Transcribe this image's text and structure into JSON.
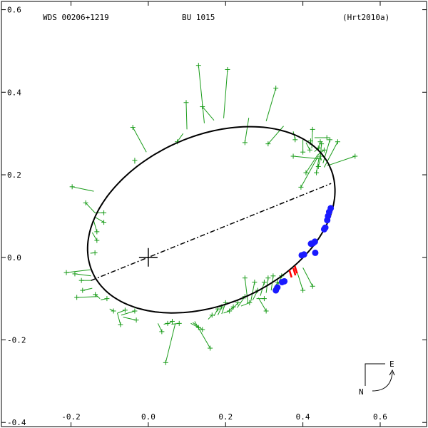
{
  "header": {
    "left": "WDS 00206+1219",
    "center": "BU 1015",
    "right": "(Hrt2010a)"
  },
  "compass": {
    "east": "E",
    "north": "N"
  },
  "colors": {
    "orbit": "#000000",
    "residual": "#1a9c1a",
    "speckle": "#1a1aff",
    "recent": "#ff0000"
  },
  "chart_data": {
    "type": "scatter",
    "title": "",
    "xlabel": "",
    "ylabel": "",
    "xlim": [
      -0.38,
      0.72
    ],
    "ylim": [
      -0.41,
      0.62
    ],
    "x_ticks": [
      "-0.2",
      "0.0",
      "0.2",
      "0.4",
      "0.6"
    ],
    "x_tick_values": [
      -0.2,
      0.0,
      0.2,
      0.4,
      0.6
    ],
    "y_ticks": [
      "0.6",
      "0.4",
      "0.2",
      "0.0",
      "-0.2",
      "-0.4"
    ],
    "y_tick_values": [
      0.6,
      0.4,
      0.2,
      0.0,
      -0.2,
      -0.4
    ],
    "primary": [
      0.0,
      0.0
    ],
    "line_of_nodes": [
      [
        -0.148,
        -0.056
      ],
      [
        0.473,
        0.179
      ]
    ],
    "orbit": {
      "center": [
        0.163,
        0.091
      ],
      "semi_major": 0.333,
      "semi_minor": 0.206,
      "angle_deg": 20.6
    },
    "series": [
      {
        "name": "micrometer",
        "marker": "plus",
        "points": [
          [
            -0.197,
            0.171,
            -0.141,
            0.16
          ],
          [
            -0.162,
            0.132,
            -0.138,
            0.108
          ],
          [
            -0.115,
            0.108,
            -0.138,
            0.108
          ],
          [
            -0.115,
            0.085,
            -0.139,
            0.098
          ],
          [
            -0.133,
            0.062,
            -0.141,
            0.088
          ],
          [
            -0.133,
            0.041,
            -0.145,
            0.06
          ],
          [
            -0.138,
            0.011,
            -0.15,
            0.01
          ],
          [
            -0.212,
            -0.037,
            -0.15,
            -0.03
          ],
          [
            -0.19,
            -0.04,
            -0.148,
            -0.045
          ],
          [
            -0.173,
            -0.056,
            -0.147,
            -0.056
          ],
          [
            -0.17,
            -0.08,
            -0.145,
            -0.075
          ],
          [
            -0.185,
            -0.097,
            -0.13,
            -0.095
          ],
          [
            -0.137,
            -0.09,
            -0.125,
            -0.1
          ],
          [
            -0.107,
            -0.1,
            -0.123,
            -0.103
          ],
          [
            -0.09,
            -0.13,
            -0.1,
            -0.125
          ],
          [
            -0.072,
            -0.163,
            -0.08,
            -0.135
          ],
          [
            -0.06,
            -0.128,
            -0.08,
            -0.135
          ],
          [
            -0.035,
            -0.13,
            -0.07,
            -0.14
          ],
          [
            -0.031,
            -0.152,
            -0.065,
            -0.145
          ],
          [
            0.035,
            -0.18,
            0.025,
            -0.16
          ],
          [
            0.05,
            -0.16,
            0.04,
            -0.162
          ],
          [
            0.062,
            -0.155,
            0.05,
            -0.162
          ],
          [
            0.08,
            -0.16,
            0.06,
            -0.162
          ],
          [
            0.045,
            -0.255,
            0.07,
            -0.16
          ],
          [
            0.13,
            -0.17,
            0.11,
            -0.16
          ],
          [
            0.14,
            -0.175,
            0.115,
            -0.158
          ],
          [
            0.16,
            -0.22,
            0.12,
            -0.155
          ],
          [
            0.165,
            -0.14,
            0.155,
            -0.15
          ],
          [
            0.18,
            -0.125,
            0.17,
            -0.142
          ],
          [
            0.19,
            -0.12,
            0.18,
            -0.14
          ],
          [
            0.2,
            -0.11,
            0.19,
            -0.137
          ],
          [
            0.21,
            -0.13,
            0.195,
            -0.135
          ],
          [
            0.22,
            -0.12,
            0.205,
            -0.132
          ],
          [
            0.232,
            -0.11,
            0.215,
            -0.128
          ],
          [
            0.25,
            -0.095,
            0.23,
            -0.122
          ],
          [
            0.262,
            -0.11,
            0.24,
            -0.118
          ],
          [
            0.25,
            -0.05,
            0.258,
            -0.112
          ],
          [
            0.275,
            -0.06,
            0.265,
            -0.108
          ],
          [
            0.283,
            -0.08,
            0.27,
            -0.104
          ],
          [
            0.3,
            -0.1,
            0.28,
            -0.1
          ],
          [
            0.305,
            -0.13,
            0.285,
            -0.098
          ],
          [
            0.3,
            -0.06,
            0.29,
            -0.093
          ],
          [
            0.31,
            -0.05,
            0.305,
            -0.086
          ],
          [
            0.323,
            -0.045,
            0.318,
            -0.08
          ],
          [
            0.335,
            -0.06,
            0.325,
            -0.075
          ],
          [
            0.345,
            -0.045,
            0.335,
            -0.067
          ],
          [
            0.4,
            -0.08,
            0.385,
            -0.035
          ],
          [
            0.425,
            -0.07,
            0.4,
            -0.025
          ],
          [
            -0.04,
            0.315,
            -0.005,
            0.255
          ],
          [
            -0.035,
            0.235,
            -0.035,
            0.227
          ],
          [
            0.075,
            0.28,
            0.09,
            0.3
          ],
          [
            0.098,
            0.375,
            0.1,
            0.31
          ],
          [
            0.13,
            0.465,
            0.145,
            0.325
          ],
          [
            0.14,
            0.365,
            0.17,
            0.332
          ],
          [
            0.205,
            0.455,
            0.195,
            0.337
          ],
          [
            0.25,
            0.278,
            0.26,
            0.338
          ],
          [
            0.33,
            0.41,
            0.305,
            0.33
          ],
          [
            0.31,
            0.275,
            0.35,
            0.318
          ],
          [
            0.38,
            0.285,
            0.375,
            0.305
          ],
          [
            0.4,
            0.255,
            0.4,
            0.285
          ],
          [
            0.418,
            0.26,
            0.408,
            0.278
          ],
          [
            0.42,
            0.282,
            0.418,
            0.272
          ],
          [
            0.425,
            0.31,
            0.423,
            0.264
          ],
          [
            0.44,
            0.265,
            0.43,
            0.256
          ],
          [
            0.455,
            0.26,
            0.438,
            0.248
          ],
          [
            0.448,
            0.275,
            0.445,
            0.238
          ],
          [
            0.47,
            0.285,
            0.452,
            0.228
          ],
          [
            0.49,
            0.28,
            0.455,
            0.218
          ],
          [
            0.535,
            0.245,
            0.463,
            0.222
          ],
          [
            0.375,
            0.245,
            0.448,
            0.238
          ],
          [
            0.408,
            0.205,
            0.438,
            0.248
          ],
          [
            0.395,
            0.17,
            0.44,
            0.246
          ],
          [
            0.44,
            0.22,
            0.445,
            0.238
          ],
          [
            0.445,
            0.245,
            0.448,
            0.235
          ],
          [
            0.435,
            0.205,
            0.442,
            0.243
          ],
          [
            0.445,
            0.28,
            0.44,
            0.258
          ],
          [
            0.462,
            0.29,
            0.43,
            0.29
          ]
        ]
      },
      {
        "name": "speckle",
        "marker": "dot",
        "points": [
          [
            0.472,
            0.119
          ],
          [
            0.468,
            0.11
          ],
          [
            0.465,
            0.1
          ],
          [
            0.463,
            0.09
          ],
          [
            0.458,
            0.072
          ],
          [
            0.455,
            0.068
          ],
          [
            0.431,
            0.038
          ],
          [
            0.426,
            0.034
          ],
          [
            0.421,
            0.033
          ],
          [
            0.432,
            0.011
          ],
          [
            0.403,
            0.007
          ],
          [
            0.397,
            0.005
          ],
          [
            0.352,
            -0.058
          ],
          [
            0.346,
            -0.06
          ],
          [
            0.334,
            -0.073
          ],
          [
            0.33,
            -0.08
          ]
        ]
      },
      {
        "name": "recent",
        "marker": "bar",
        "points": [
          [
            0.368,
            -0.04
          ],
          [
            0.378,
            -0.035
          ],
          [
            0.382,
            -0.03
          ]
        ]
      }
    ]
  }
}
